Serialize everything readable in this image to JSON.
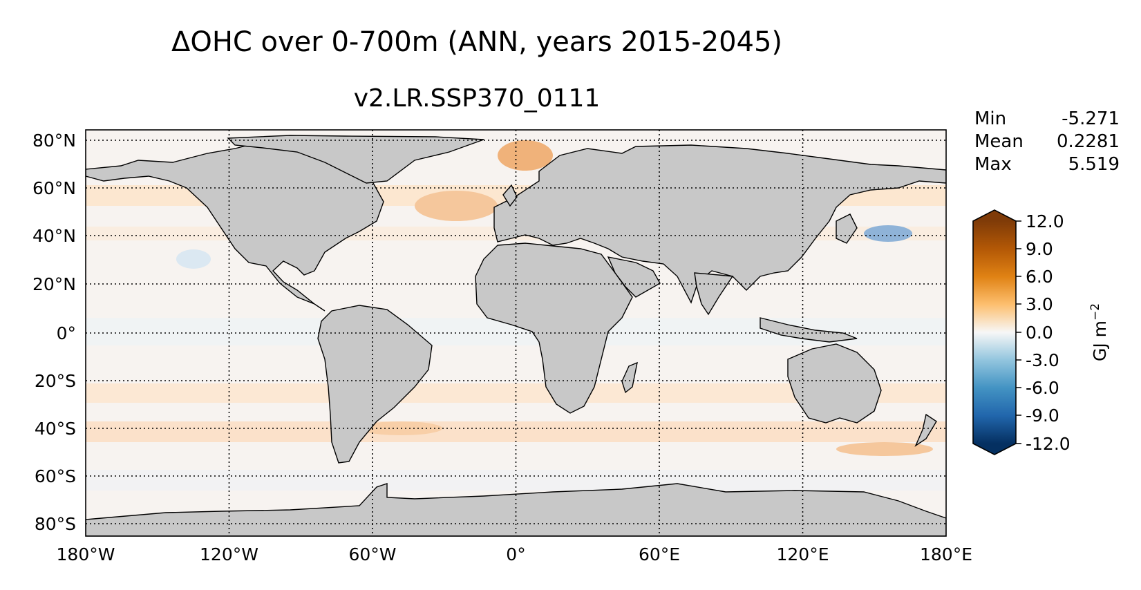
{
  "title": "ΔOHC over 0-700m (ANN, years 2015-2045)",
  "subtitle": "v2.LR.SSP370_0111",
  "stats": [
    {
      "label": "Min",
      "value": "-5.271"
    },
    {
      "label": "Mean",
      "value": "0.2281"
    },
    {
      "label": "Max",
      "value": "5.519"
    }
  ],
  "map": {
    "projection": "PlateCarree",
    "extent": {
      "lon": [
        -180,
        180
      ],
      "lat": [
        -90,
        90
      ]
    },
    "lon_ticks": [
      -180,
      -120,
      -60,
      0,
      60,
      120,
      180
    ],
    "lon_tick_labels": [
      "180°W",
      "120°W",
      "60°W",
      "0°",
      "60°E",
      "120°E",
      "180°E"
    ],
    "lat_ticks": [
      80,
      60,
      40,
      20,
      0,
      -20,
      -40,
      -60,
      -80
    ],
    "lat_tick_labels": [
      "80°N",
      "60°N",
      "40°N",
      "20°N",
      "0°",
      "20°S",
      "40°S",
      "60°S",
      "80°S"
    ],
    "grid": "dotted",
    "land_color": "#c8c8c8"
  },
  "colorbar": {
    "label_base": "GJ m",
    "label_exp": "−2",
    "ticks": [
      12,
      9,
      6,
      3,
      0,
      -3,
      -6,
      -9,
      -12
    ],
    "tick_labels": [
      "12.0",
      "9.0",
      "6.0",
      "3.0",
      "0.0",
      "-3.0",
      "-6.0",
      "-9.0",
      "-12.0"
    ],
    "extend": "both",
    "colors": [
      "#053061",
      "#2166ac",
      "#4393c3",
      "#92c5de",
      "#f7f7f7",
      "#fdbf6f",
      "#e08214",
      "#b35806",
      "#7f3b08"
    ]
  }
}
